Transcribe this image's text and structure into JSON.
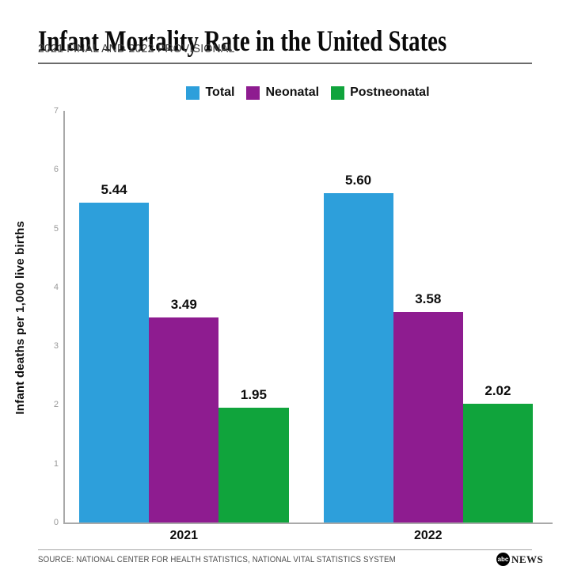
{
  "chart_data": {
    "type": "bar",
    "title": "Infant Mortality Rate in the United States",
    "subtitle": "2021 FINAL AND 2022 PROVISIONAL",
    "categories": [
      "2021",
      "2022"
    ],
    "series": [
      {
        "name": "Total",
        "color": "#2D9FDB",
        "values": [
          5.44,
          5.6
        ]
      },
      {
        "name": "Neonatal",
        "color": "#8E1C90",
        "values": [
          3.49,
          3.58
        ]
      },
      {
        "name": "Postneonatal",
        "color": "#10A43C",
        "values": [
          1.95,
          2.02
        ]
      }
    ],
    "xlabel": "",
    "ylabel": "Infant deaths per 1,000 live births",
    "ylim": [
      0,
      7
    ],
    "yticks": [
      0,
      1,
      2,
      3,
      4,
      5,
      6,
      7
    ],
    "grid": false,
    "legend_position": "top",
    "value_label_decimals": 2
  },
  "footer": {
    "source": "SOURCE: NATIONAL CENTER FOR HEALTH STATISTICS, NATIONAL VITAL STATISTICS SYSTEM",
    "logo_abc": "abc",
    "logo_news": "NEWS"
  }
}
